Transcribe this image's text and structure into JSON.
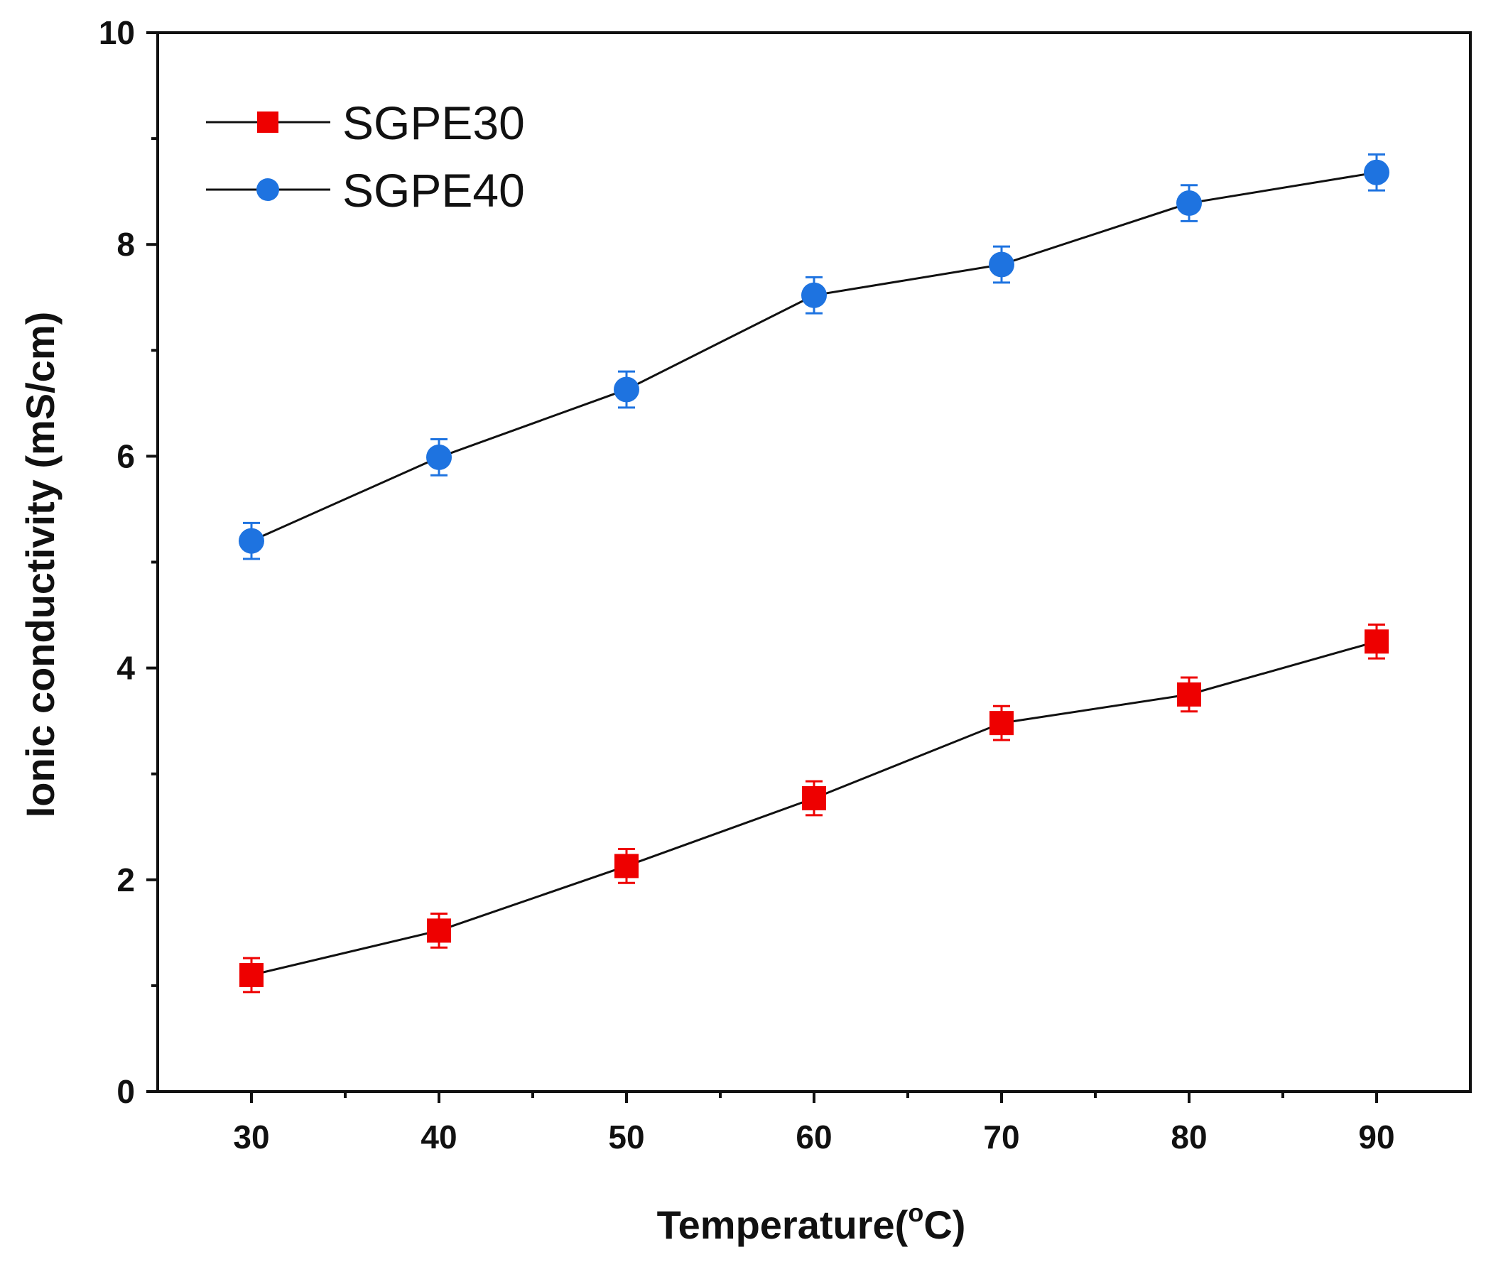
{
  "chart_data": {
    "type": "line",
    "title": "",
    "xlabel": "Temperature(",
    "xlabel_sup": "o",
    "xlabel_end": "C)",
    "ylabel": "Ionic conductivity (mS/cm)",
    "xlim": [
      25,
      95
    ],
    "ylim": [
      0,
      10
    ],
    "xticks": [
      30,
      40,
      50,
      60,
      70,
      80,
      90
    ],
    "xminorticks": [
      35,
      45,
      55,
      65,
      75,
      85
    ],
    "yticks": [
      0,
      2,
      4,
      6,
      8,
      10
    ],
    "yminorticks": [
      1,
      3,
      5,
      7,
      9
    ],
    "grid": false,
    "legend_position": "top-left",
    "x": [
      30,
      40,
      50,
      60,
      70,
      80,
      90
    ],
    "series": [
      {
        "name": "SGPE30",
        "marker": "square",
        "color": "#ee0000",
        "line_color": "#111111",
        "values": [
          1.1,
          1.52,
          2.13,
          2.77,
          3.48,
          3.75,
          4.25
        ],
        "errors": [
          0.16,
          0.16,
          0.16,
          0.16,
          0.16,
          0.16,
          0.16
        ]
      },
      {
        "name": "SGPE40",
        "marker": "circle",
        "color": "#1e73e0",
        "line_color": "#111111",
        "values": [
          5.2,
          5.99,
          6.63,
          7.52,
          7.81,
          8.39,
          8.68
        ],
        "errors": [
          0.17,
          0.17,
          0.17,
          0.17,
          0.17,
          0.17,
          0.17
        ]
      }
    ]
  }
}
